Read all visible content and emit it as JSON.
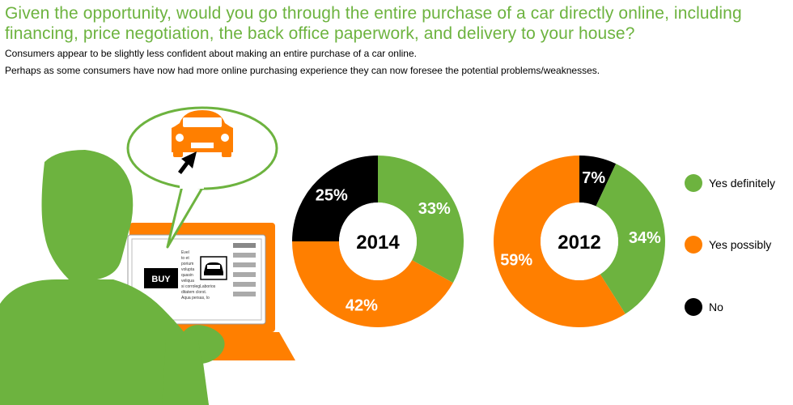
{
  "title": "Given the opportunity, would you go through the entire purchase of a car directly online, including financing, price negotiation, the back office paperwork, and delivery to your house?",
  "subtitle_1": "Consumers appear to be slightly less confident about making an entire purchase of a car online.",
  "subtitle_2": "Perhaps as some consumers have now had more online purchasing experience they can now foresee the potential problems/weaknesses.",
  "illustration": {
    "buy_label": "BUY",
    "ad_text": [
      "Evel",
      "to et",
      "porium",
      "volupta",
      "quasin",
      "veliqua",
      "si corrolegLaborios",
      "ditatem clorst.",
      "Aqua persas, lo"
    ]
  },
  "colors": {
    "yes_definitely": "#6db33f",
    "yes_possibly": "#ff7f00",
    "no": "#000000",
    "green": "#6db33f",
    "orange": "#ff7f00"
  },
  "chart_data": [
    {
      "type": "pie",
      "center_label": "2014",
      "categories": [
        "Yes definitely",
        "Yes possibly",
        "No"
      ],
      "values": [
        33,
        42,
        25
      ],
      "labels": [
        "33%",
        "42%",
        "25%"
      ]
    },
    {
      "type": "pie",
      "center_label": "2012",
      "categories": [
        "Yes definitely",
        "Yes possibly",
        "No"
      ],
      "values": [
        34,
        59,
        7
      ],
      "labels": [
        "34%",
        "59%",
        "7%"
      ]
    }
  ],
  "legend": [
    {
      "label": "Yes definitely",
      "color": "#6db33f"
    },
    {
      "label": "Yes possibly",
      "color": "#ff7f00"
    },
    {
      "label": "No",
      "color": "#000000"
    }
  ]
}
